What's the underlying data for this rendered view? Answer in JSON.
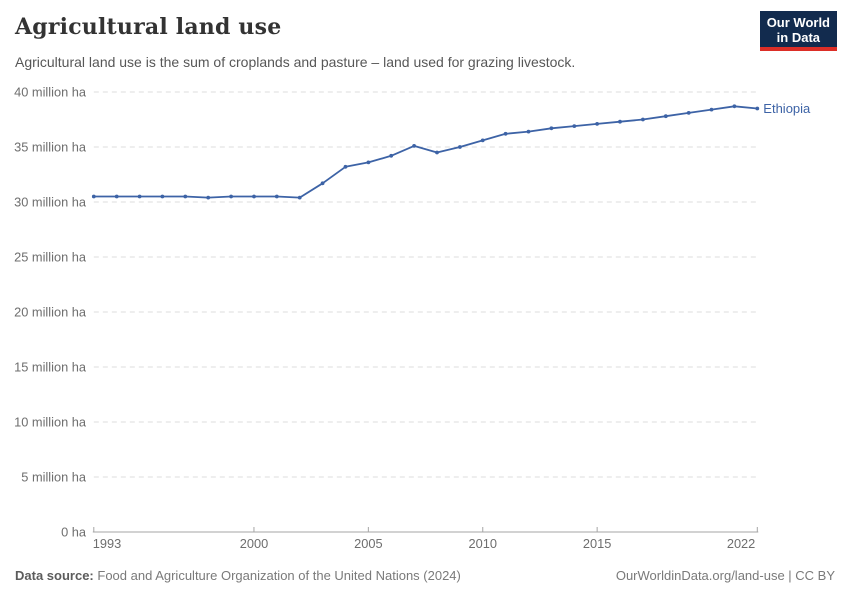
{
  "header": {
    "title": "Agricultural land use",
    "subtitle": "Agricultural land use is the sum of croplands and pasture – land used for grazing livestock."
  },
  "logo": {
    "line1": "Our World",
    "line2": "in Data",
    "bg_color": "#122b4e",
    "accent_color": "#dc2e27"
  },
  "chart_data": {
    "type": "line",
    "title": "Agricultural land use",
    "unit": "million ha",
    "x": [
      1993,
      1994,
      1995,
      1996,
      1997,
      1998,
      1999,
      2000,
      2001,
      2002,
      2003,
      2004,
      2005,
      2006,
      2007,
      2008,
      2009,
      2010,
      2011,
      2012,
      2013,
      2014,
      2015,
      2016,
      2017,
      2018,
      2019,
      2020,
      2021,
      2022
    ],
    "series": [
      {
        "name": "Ethiopia",
        "color": "#3d63a6",
        "values": [
          30.5,
          30.5,
          30.5,
          30.5,
          30.5,
          30.4,
          30.5,
          30.5,
          30.5,
          30.4,
          31.7,
          33.2,
          33.6,
          34.2,
          35.1,
          34.5,
          35.0,
          35.6,
          36.2,
          36.4,
          36.7,
          36.9,
          37.1,
          37.3,
          37.5,
          37.8,
          38.1,
          38.4,
          38.7,
          38.5
        ]
      }
    ],
    "xlim": [
      1993,
      2022
    ],
    "ylim": [
      0,
      40
    ],
    "x_ticks": [
      1993,
      2000,
      2005,
      2010,
      2015,
      2022
    ],
    "y_ticks": [
      {
        "value": 0,
        "label": "0 ha"
      },
      {
        "value": 5,
        "label": "5 million ha"
      },
      {
        "value": 10,
        "label": "10 million ha"
      },
      {
        "value": 15,
        "label": "15 million ha"
      },
      {
        "value": 20,
        "label": "20 million ha"
      },
      {
        "value": 25,
        "label": "25 million ha"
      },
      {
        "value": 30,
        "label": "30 million ha"
      },
      {
        "value": 35,
        "label": "35 million ha"
      },
      {
        "value": 40,
        "label": "40 million ha"
      }
    ],
    "grid": "horizontal-dashed",
    "grid_color": "#dddddd",
    "axis_color": "#a5a5a5",
    "tick_label_color": "#6e6e6e",
    "legend_position": "end-of-line-label"
  },
  "footer": {
    "source_label": "Data source:",
    "source_text": "Food and Agriculture Organization of the United Nations (2024)",
    "link": "OurWorldinData.org/land-use | CC BY"
  }
}
